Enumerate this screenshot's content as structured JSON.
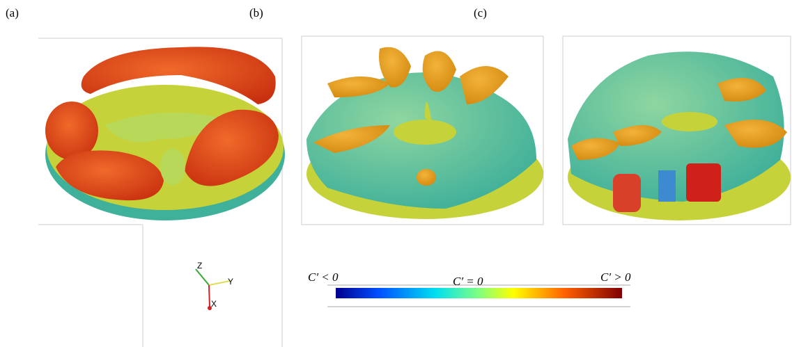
{
  "panels": [
    {
      "label": "(a)"
    },
    {
      "label": "(b)"
    },
    {
      "label": "(c)"
    }
  ],
  "axes_triad": {
    "z": "Z",
    "y": "Y",
    "x": "X"
  },
  "colorbar": {
    "labels": [
      "C′ < 0",
      "C′ = 0",
      "C′ > 0"
    ]
  }
}
